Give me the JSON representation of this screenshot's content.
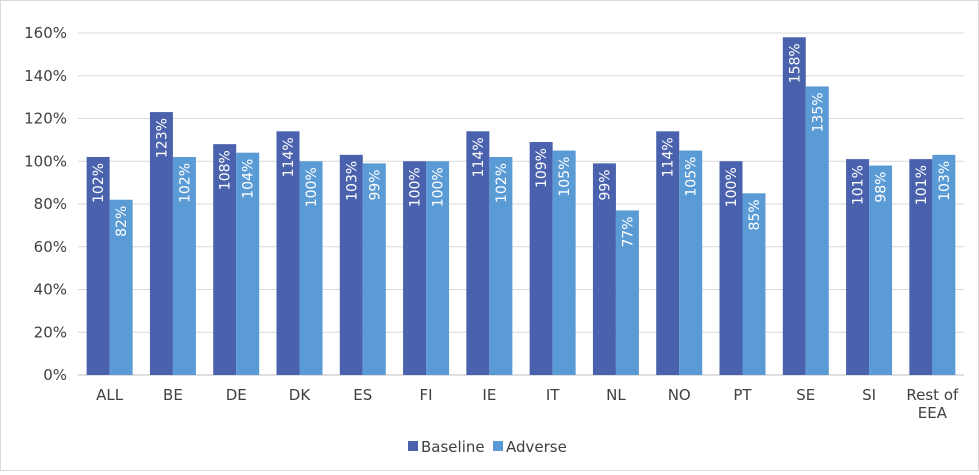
{
  "chart_data": {
    "type": "bar",
    "title": "",
    "xlabel": "",
    "ylabel": "",
    "ylim": [
      0,
      160
    ],
    "y_ticks": [
      "0%",
      "20%",
      "40%",
      "60%",
      "80%",
      "100%",
      "120%",
      "140%",
      "160%"
    ],
    "grid": "horizontal",
    "legend_position": "bottom",
    "categories": [
      "ALL",
      "BE",
      "DE",
      "DK",
      "ES",
      "FI",
      "IE",
      "IT",
      "NL",
      "NO",
      "PT",
      "SE",
      "SI",
      "Rest of EEA"
    ],
    "series": [
      {
        "name": "Baseline",
        "color": "#4a62ad",
        "values": [
          102,
          123,
          108,
          114,
          103,
          100,
          114,
          109,
          99,
          114,
          100,
          158,
          101,
          101
        ],
        "labels": [
          "102%",
          "123%",
          "108%",
          "114%",
          "103%",
          "100%",
          "114%",
          "109%",
          "99%",
          "114%",
          "100%",
          "158%",
          "101%",
          "101%"
        ]
      },
      {
        "name": "Adverse",
        "color": "#5b9bd5",
        "values": [
          82,
          102,
          104,
          100,
          99,
          100,
          102,
          105,
          77,
          105,
          85,
          135,
          98,
          103
        ],
        "labels": [
          "82%",
          "102%",
          "104%",
          "100%",
          "99%",
          "100%",
          "102%",
          "105%",
          "77%",
          "105%",
          "85%",
          "135%",
          "98%",
          "103%"
        ]
      }
    ]
  }
}
